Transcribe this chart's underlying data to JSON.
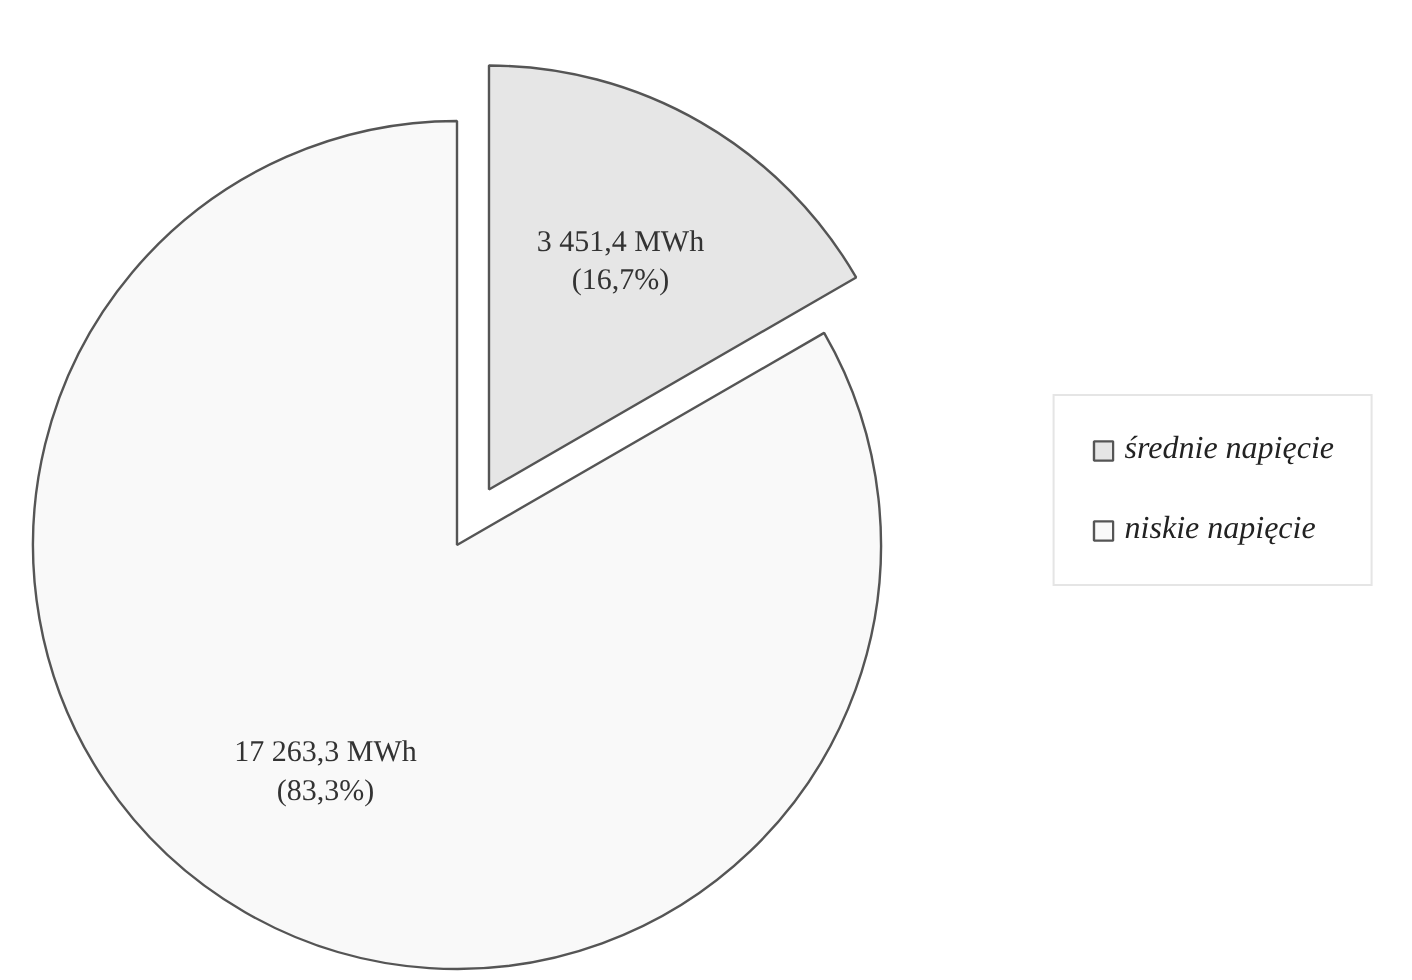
{
  "chart_data": {
    "type": "pie",
    "categories": [
      "średnie napięcie",
      "niskie napięcie"
    ],
    "values": [
      3451.4,
      17263.3
    ],
    "colors": [
      "#e6e6e6",
      "#f9f9f9"
    ],
    "value_labels": [
      "3 451,4 MWh\n(16,7%)",
      "17 263,3 MWh\n(83,3%)"
    ],
    "legend": "right"
  }
}
